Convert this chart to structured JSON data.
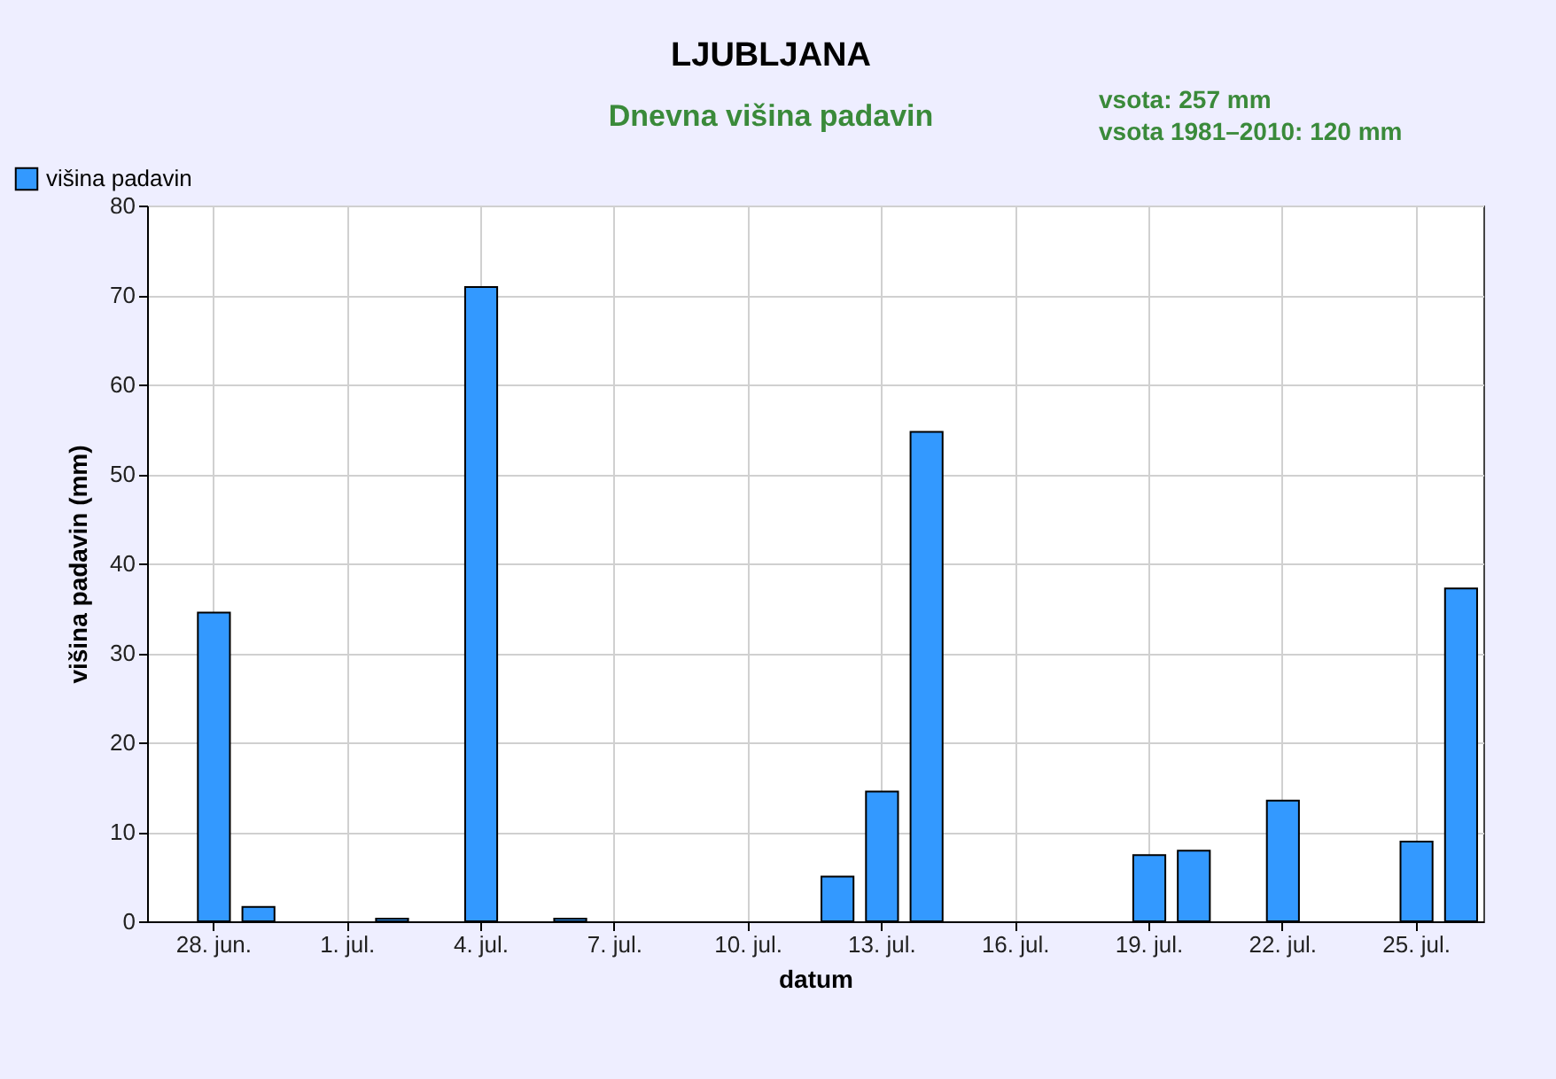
{
  "chart_data": {
    "type": "bar",
    "title": "LJUBLJANA",
    "subtitle": "Dnevna višina padavin",
    "annotations": [
      "vsota: 257 mm",
      "vsota 1981–2010: 120 mm"
    ],
    "xlabel": "datum",
    "ylabel": "višina padavin (mm)",
    "categories": [
      null,
      "28. jun.",
      null,
      null,
      "1. jul.",
      null,
      null,
      "4. jul.",
      null,
      null,
      "7. jul.",
      null,
      null,
      "10. jul.",
      null,
      null,
      "13. jul.",
      null,
      null,
      "16. jul.",
      null,
      null,
      "19. jul.",
      null,
      null,
      "22. jul.",
      null,
      null,
      "25. jul.",
      null
    ],
    "series": [
      {
        "name": "višina padavin",
        "color": "#3399ff",
        "values": [
          null,
          34.5,
          1.6,
          null,
          null,
          0.3,
          null,
          70.9,
          null,
          0.3,
          null,
          null,
          null,
          null,
          null,
          5.0,
          14.5,
          54.7,
          null,
          null,
          null,
          null,
          7.4,
          7.9,
          null,
          13.5,
          null,
          null,
          8.9,
          37.2
        ]
      }
    ],
    "ylim": [
      0,
      80
    ],
    "yticks": [
      0,
      10,
      20,
      30,
      40,
      50,
      60,
      70,
      80
    ],
    "grid": true,
    "legend": "top left"
  }
}
